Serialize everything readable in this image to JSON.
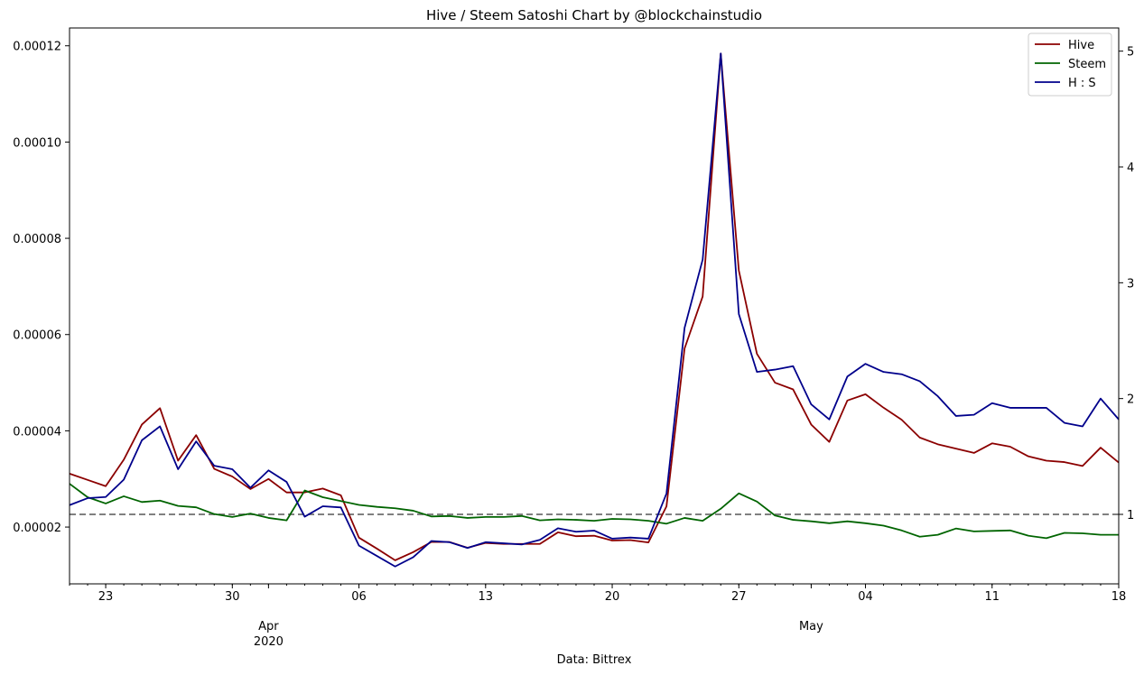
{
  "chart_data": {
    "type": "line",
    "title": "Hive / Steem Satoshi Chart by @blockchainstudio",
    "xlabel": "Data: Bittrex",
    "x_start_date": "2020-03-21",
    "x_range_days": [
      0,
      58
    ],
    "x_ticks": [
      {
        "day": 2,
        "label": "23",
        "sublabel": ""
      },
      {
        "day": 9,
        "label": "30",
        "sublabel": ""
      },
      {
        "day": 11,
        "label": "",
        "sublabel": "Apr\n2020"
      },
      {
        "day": 16,
        "label": "06",
        "sublabel": ""
      },
      {
        "day": 23,
        "label": "13",
        "sublabel": ""
      },
      {
        "day": 30,
        "label": "20",
        "sublabel": ""
      },
      {
        "day": 37,
        "label": "27",
        "sublabel": ""
      },
      {
        "day": 41,
        "label": "",
        "sublabel": "May"
      },
      {
        "day": 44,
        "label": "04",
        "sublabel": ""
      },
      {
        "day": 51,
        "label": "11",
        "sublabel": ""
      },
      {
        "day": 58,
        "label": "18",
        "sublabel": ""
      }
    ],
    "y_left": {
      "ylim": [
        8.2e-06,
        0.0001237
      ],
      "ticks": [
        "0.00002",
        "0.00004",
        "0.00006",
        "0.00008",
        "0.00010",
        "0.00012"
      ]
    },
    "y_right": {
      "ylim": [
        0.4,
        5.2
      ],
      "ticks": [
        "1",
        "2",
        "3",
        "4",
        "5"
      ]
    },
    "reference_line": {
      "axis": "right",
      "value": 1,
      "style": "dashed",
      "color": "#808080"
    },
    "legend": {
      "position": "top-right"
    },
    "series": [
      {
        "name": "Hive",
        "axis": "left",
        "color": "#8b0000",
        "values": [
          3.11e-05,
          2.98e-05,
          2.85e-05,
          3.4e-05,
          4.13e-05,
          4.47e-05,
          3.38e-05,
          3.91e-05,
          3.21e-05,
          3.05e-05,
          2.79e-05,
          3e-05,
          2.72e-05,
          2.72e-05,
          2.8e-05,
          2.66e-05,
          1.78e-05,
          1.55e-05,
          1.31e-05,
          1.48e-05,
          1.69e-05,
          1.69e-05,
          1.57e-05,
          1.67e-05,
          1.65e-05,
          1.65e-05,
          1.65e-05,
          1.89e-05,
          1.81e-05,
          1.82e-05,
          1.72e-05,
          1.73e-05,
          1.68e-05,
          2.43e-05,
          5.71e-05,
          6.79e-05,
          0.0001184,
          7.33e-05,
          5.6e-05,
          5e-05,
          4.86e-05,
          4.13e-05,
          3.77e-05,
          4.63e-05,
          4.76e-05,
          4.48e-05,
          4.23e-05,
          3.86e-05,
          3.72e-05,
          3.63e-05,
          3.54e-05,
          3.74e-05,
          3.67e-05,
          3.47e-05,
          3.38e-05,
          3.35e-05,
          3.27e-05,
          3.65e-05,
          3.34e-05
        ]
      },
      {
        "name": "Steem",
        "axis": "left",
        "color": "#006400",
        "values": [
          2.9e-05,
          2.62e-05,
          2.49e-05,
          2.64e-05,
          2.52e-05,
          2.55e-05,
          2.44e-05,
          2.41e-05,
          2.27e-05,
          2.21e-05,
          2.28e-05,
          2.19e-05,
          2.14e-05,
          2.76e-05,
          2.62e-05,
          2.54e-05,
          2.46e-05,
          2.42e-05,
          2.39e-05,
          2.34e-05,
          2.22e-05,
          2.23e-05,
          2.19e-05,
          2.21e-05,
          2.21e-05,
          2.23e-05,
          2.14e-05,
          2.16e-05,
          2.15e-05,
          2.13e-05,
          2.17e-05,
          2.16e-05,
          2.13e-05,
          2.07e-05,
          2.19e-05,
          2.13e-05,
          2.38e-05,
          2.7e-05,
          2.53e-05,
          2.24e-05,
          2.15e-05,
          2.12e-05,
          2.08e-05,
          2.12e-05,
          2.08e-05,
          2.03e-05,
          1.93e-05,
          1.8e-05,
          1.84e-05,
          1.97e-05,
          1.91e-05,
          1.92e-05,
          1.93e-05,
          1.82e-05,
          1.77e-05,
          1.88e-05,
          1.87e-05,
          1.84e-05,
          1.84e-05
        ]
      },
      {
        "name": "H : S",
        "axis": "right",
        "color": "#00008b",
        "values": [
          1.08,
          1.14,
          1.15,
          1.3,
          1.64,
          1.76,
          1.39,
          1.63,
          1.42,
          1.39,
          1.23,
          1.38,
          1.28,
          0.98,
          1.07,
          1.06,
          0.73,
          0.64,
          0.55,
          0.63,
          0.77,
          0.76,
          0.71,
          0.76,
          0.75,
          0.74,
          0.78,
          0.88,
          0.85,
          0.86,
          0.79,
          0.8,
          0.79,
          1.18,
          2.61,
          3.2,
          4.98,
          2.73,
          2.23,
          2.25,
          2.28,
          1.95,
          1.82,
          2.19,
          2.3,
          2.23,
          2.21,
          2.15,
          2.02,
          1.85,
          1.86,
          1.96,
          1.92,
          1.92,
          1.92,
          1.79,
          1.76,
          2.0,
          1.82
        ]
      }
    ]
  }
}
